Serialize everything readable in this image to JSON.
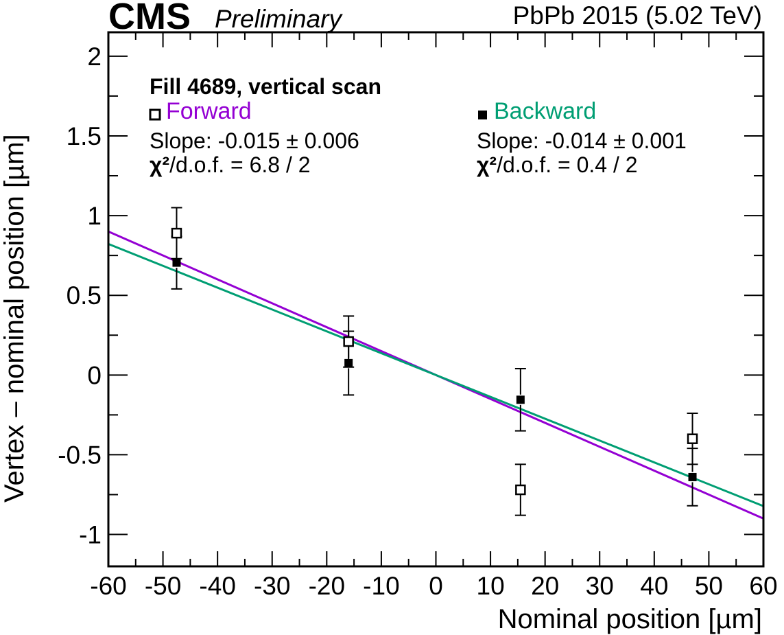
{
  "header": {
    "experiment": "CMS",
    "status": "Preliminary",
    "dataset": "PbPb 2015 (5.02 TeV)"
  },
  "annotation": {
    "title": "Fill 4689, vertical scan",
    "forward_slope": "Slope: -0.015 ± 0.006",
    "forward_chi2_symbol": "χ²",
    "forward_chi2_rest": "/d.o.f. = 6.8 / 2",
    "backward_slope": "Slope: -0.014 ± 0.001",
    "backward_chi2_symbol": "χ²",
    "backward_chi2_rest": "/d.o.f. = 0.4 / 2"
  },
  "chart_data": {
    "type": "scatter",
    "title": "",
    "xlabel": "Nominal position [µm]",
    "ylabel": "Vertex – nominal position [µm]",
    "xlim": [
      -60,
      60
    ],
    "ylim": [
      -1.2,
      2.15
    ],
    "x_ticks": [
      -60,
      -50,
      -40,
      -30,
      -20,
      -10,
      0,
      10,
      20,
      30,
      40,
      50,
      60
    ],
    "x_tick_labels": [
      "-60",
      "-50",
      "-40",
      "-30",
      "-20",
      "-10",
      "0",
      "10",
      "20",
      "30",
      "40",
      "50",
      "60"
    ],
    "y_ticks": [
      -1,
      -0.5,
      0,
      0.5,
      1,
      1.5,
      2
    ],
    "y_tick_labels": [
      "-1",
      "-0.5",
      "0",
      "0.5",
      "1",
      "1.5",
      "2"
    ],
    "grid": false,
    "legend_placement": "top",
    "series": [
      {
        "name": "Forward",
        "marker": "open-square",
        "color": "#9400D3",
        "points": [
          {
            "x": -47.5,
            "y": 0.89,
            "err": 0.16
          },
          {
            "x": -16.0,
            "y": 0.21,
            "err": 0.16
          },
          {
            "x": 15.5,
            "y": -0.72,
            "err": 0.16
          },
          {
            "x": 47.0,
            "y": -0.4,
            "err": 0.16
          }
        ],
        "fit": {
          "slope": -0.015,
          "x_range": [
            -60,
            60
          ]
        }
      },
      {
        "name": "Backward",
        "marker": "filled-square",
        "color": "#009E73",
        "points": [
          {
            "x": -47.5,
            "y": 0.705,
            "err": 0.165
          },
          {
            "x": -16.0,
            "y": 0.075,
            "err": 0.2
          },
          {
            "x": 15.5,
            "y": -0.155,
            "err": 0.195
          },
          {
            "x": 47.0,
            "y": -0.64,
            "err": 0.18
          }
        ],
        "fit": {
          "slope": -0.0137,
          "x_range": [
            -60,
            60
          ]
        }
      }
    ]
  }
}
